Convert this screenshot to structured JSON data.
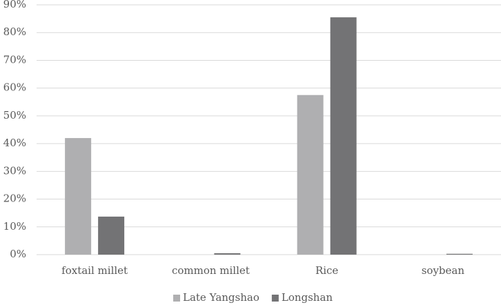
{
  "chart_data": {
    "type": "bar",
    "categories": [
      "foxtail millet",
      "common millet",
      "Rice",
      "soybean"
    ],
    "series": [
      {
        "name": "Late Yangshao",
        "color": "#afafb1",
        "values": [
          42,
          0,
          57.5,
          0
        ]
      },
      {
        "name": "Longshan",
        "color": "#737375",
        "values": [
          13.7,
          0.5,
          85.5,
          0.3
        ]
      }
    ],
    "ylim": [
      0,
      90
    ],
    "yticks": [
      {
        "value": 0,
        "label": "0%"
      },
      {
        "value": 10,
        "label": "10%"
      },
      {
        "value": 20,
        "label": "20%"
      },
      {
        "value": 30,
        "label": "30%"
      },
      {
        "value": 40,
        "label": "40%"
      },
      {
        "value": 50,
        "label": "50%"
      },
      {
        "value": 60,
        "label": "60%"
      },
      {
        "value": 70,
        "label": "70%"
      },
      {
        "value": 80,
        "label": "80%"
      },
      {
        "value": 90,
        "label": "90%"
      }
    ],
    "grid": true,
    "legend": "bottom"
  }
}
